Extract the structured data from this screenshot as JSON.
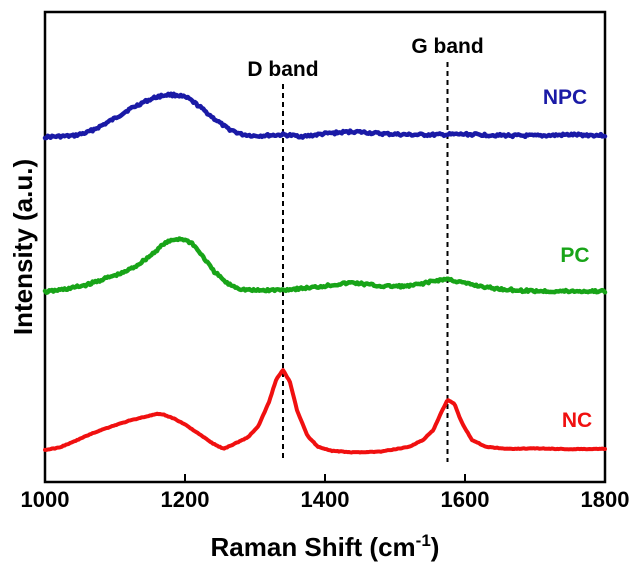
{
  "chart_data": {
    "type": "line",
    "xlabel": "Raman Shift (cm",
    "xlabel_sup": "-1",
    "xlabel_end": ")",
    "ylabel": "Intensity (a.u.)",
    "xlim": [
      1000,
      1800
    ],
    "x_ticks": [
      "1000",
      "1200",
      "1400",
      "1600",
      "1800"
    ],
    "y_ticks_shown": false,
    "grid": false,
    "reference_lines": [
      {
        "label": "D band",
        "x": 1340
      },
      {
        "label": "G band",
        "x": 1575
      }
    ],
    "series": [
      {
        "name": "NPC",
        "color": "#1a1aa6",
        "x": [
          1000,
          1040,
          1060,
          1080,
          1100,
          1120,
          1140,
          1160,
          1175,
          1190,
          1205,
          1220,
          1240,
          1260,
          1280,
          1300,
          1340,
          1370,
          1400,
          1440,
          1480,
          1520,
          1560,
          1600,
          1650,
          1700,
          1750,
          1800
        ],
        "y": [
          0.0,
          0.2,
          0.8,
          2.0,
          3.4,
          5.0,
          6.3,
          7.3,
          7.7,
          7.6,
          7.0,
          5.6,
          3.5,
          1.6,
          0.5,
          0.2,
          0.4,
          0.1,
          0.6,
          1.0,
          0.6,
          0.4,
          0.4,
          0.5,
          0.3,
          0.2,
          0.4,
          0.3
        ]
      },
      {
        "name": "PC",
        "color": "#18a418",
        "x": [
          1000,
          1030,
          1060,
          1090,
          1110,
          1130,
          1150,
          1170,
          1185,
          1195,
          1210,
          1225,
          1240,
          1260,
          1280,
          1300,
          1340,
          1380,
          1420,
          1440,
          1480,
          1520,
          1560,
          1575,
          1600,
          1640,
          1680,
          1720,
          1760,
          1800
        ],
        "y": [
          0.0,
          0.4,
          1.0,
          2.0,
          2.6,
          3.6,
          5.0,
          6.7,
          7.3,
          7.4,
          6.8,
          5.0,
          3.0,
          1.2,
          0.4,
          0.2,
          0.3,
          0.6,
          1.1,
          1.3,
          0.8,
          0.8,
          1.6,
          1.8,
          1.2,
          0.5,
          0.2,
          0.1,
          0.1,
          0.1
        ]
      },
      {
        "name": "NC",
        "color": "#f01010",
        "x": [
          1000,
          1020,
          1040,
          1060,
          1080,
          1100,
          1120,
          1140,
          1160,
          1170,
          1185,
          1200,
          1220,
          1240,
          1255,
          1270,
          1290,
          1305,
          1320,
          1330,
          1340,
          1350,
          1360,
          1375,
          1390,
          1410,
          1440,
          1480,
          1520,
          1540,
          1555,
          1565,
          1575,
          1585,
          1595,
          1610,
          1630,
          1660,
          1700,
          1750,
          1800
        ],
        "y": [
          0.0,
          0.6,
          2.0,
          3.6,
          5.0,
          6.2,
          7.3,
          8.2,
          9.0,
          8.8,
          7.8,
          6.4,
          4.0,
          1.6,
          0.3,
          1.5,
          3.2,
          6.0,
          12.0,
          17.5,
          20.0,
          17.0,
          10.0,
          3.5,
          0.8,
          -0.2,
          -0.6,
          -0.4,
          0.8,
          2.5,
          5.0,
          9.0,
          12.5,
          11.5,
          7.0,
          2.5,
          0.8,
          0.3,
          0.4,
          0.2,
          0.3
        ]
      }
    ]
  }
}
